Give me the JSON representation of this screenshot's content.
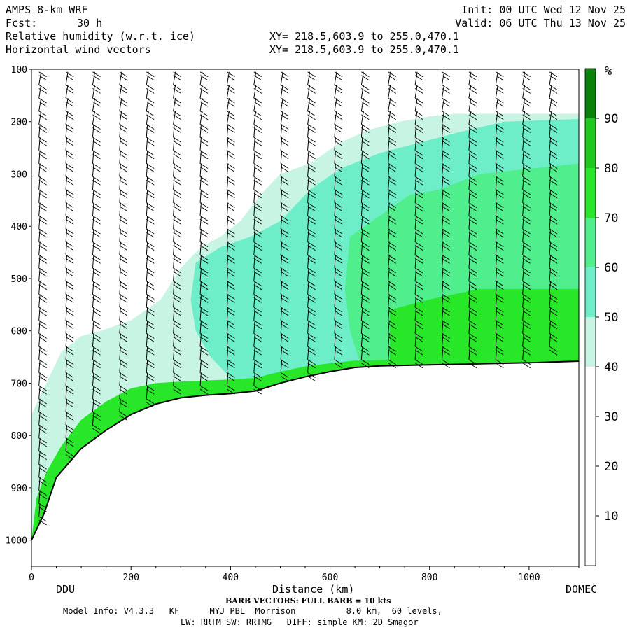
{
  "header": {
    "model": "AMPS 8-km WRF",
    "fcst_label": "Fcst:",
    "fcst_value": "30 h",
    "field1": "Relative humidity (w.r.t. ice)",
    "field2": "Horizontal wind vectors",
    "xy1": "XY= 218.5,603.9 to 255.0,470.1",
    "xy2": "XY= 218.5,603.9 to 255.0,470.1",
    "init": "Init: 00 UTC Wed 12 Nov 25",
    "valid": "Valid: 06 UTC Thu 13 Nov 25"
  },
  "chart_data": {
    "type": "heatmap",
    "title": "Relative humidity (w.r.t. ice)",
    "xlabel": "Distance (km)",
    "ylabel": "",
    "xlim": [
      0,
      1100
    ],
    "ylim": [
      1050,
      100
    ],
    "x_ticks": [
      0,
      200,
      400,
      600,
      800,
      1000
    ],
    "y_ticks": [
      100,
      200,
      300,
      400,
      500,
      600,
      700,
      800,
      900,
      1000
    ],
    "x_end_labels": {
      "left": "DDU",
      "right": "DOMEC"
    },
    "colorbar": {
      "unit": "%",
      "ticks": [
        10,
        20,
        30,
        40,
        50,
        60,
        70,
        80,
        90
      ],
      "colors": [
        "#ffffff",
        "#ffffff",
        "#ffffff",
        "#c8f5e3",
        "#6eeec8",
        "#50ee8c",
        "#28e628",
        "#1ec81e",
        "#0a820a"
      ]
    },
    "terrain_pressure": [
      [
        0,
        1000
      ],
      [
        25,
        950
      ],
      [
        50,
        880
      ],
      [
        100,
        825
      ],
      [
        150,
        790
      ],
      [
        200,
        760
      ],
      [
        250,
        740
      ],
      [
        300,
        728
      ],
      [
        350,
        723
      ],
      [
        400,
        720
      ],
      [
        450,
        715
      ],
      [
        500,
        700
      ],
      [
        550,
        688
      ],
      [
        600,
        678
      ],
      [
        650,
        670
      ],
      [
        700,
        667
      ],
      [
        800,
        665
      ],
      [
        900,
        663
      ],
      [
        1000,
        661
      ],
      [
        1100,
        658
      ]
    ],
    "rh_regions": [
      {
        "level": 40,
        "points": [
          [
            0,
            760
          ],
          [
            30,
            700
          ],
          [
            60,
            640
          ],
          [
            100,
            610
          ],
          [
            140,
            600
          ],
          [
            200,
            580
          ],
          [
            260,
            540
          ],
          [
            300,
            480
          ],
          [
            340,
            440
          ],
          [
            380,
            420
          ],
          [
            420,
            390
          ],
          [
            460,
            340
          ],
          [
            500,
            300
          ],
          [
            560,
            280
          ],
          [
            620,
            240
          ],
          [
            680,
            215
          ],
          [
            740,
            200
          ],
          [
            800,
            190
          ],
          [
            850,
            185
          ],
          [
            1100,
            185
          ],
          [
            1100,
            658
          ],
          [
            1000,
            661
          ],
          [
            800,
            665
          ],
          [
            700,
            667
          ],
          [
            600,
            678
          ],
          [
            500,
            700
          ],
          [
            400,
            720
          ],
          [
            300,
            728
          ],
          [
            200,
            760
          ],
          [
            100,
            825
          ],
          [
            50,
            880
          ],
          [
            25,
            950
          ],
          [
            0,
            1000
          ]
        ]
      },
      {
        "level": 50,
        "points": [
          [
            330,
            470
          ],
          [
            380,
            440
          ],
          [
            440,
            420
          ],
          [
            500,
            390
          ],
          [
            560,
            330
          ],
          [
            620,
            290
          ],
          [
            700,
            260
          ],
          [
            780,
            240
          ],
          [
            860,
            220
          ],
          [
            950,
            200
          ],
          [
            1100,
            195
          ],
          [
            1100,
            658
          ],
          [
            1000,
            661
          ],
          [
            800,
            665
          ],
          [
            700,
            667
          ],
          [
            600,
            678
          ],
          [
            500,
            700
          ],
          [
            440,
            700
          ],
          [
            400,
            690
          ],
          [
            360,
            650
          ],
          [
            330,
            600
          ],
          [
            320,
            540
          ]
        ]
      },
      {
        "level": 60,
        "points": [
          [
            640,
            420
          ],
          [
            700,
            380
          ],
          [
            760,
            340
          ],
          [
            820,
            330
          ],
          [
            900,
            300
          ],
          [
            1000,
            290
          ],
          [
            1100,
            280
          ],
          [
            1100,
            658
          ],
          [
            1000,
            661
          ],
          [
            800,
            665
          ],
          [
            700,
            667
          ],
          [
            660,
            660
          ],
          [
            640,
            600
          ],
          [
            630,
            520
          ]
        ]
      },
      {
        "level": 70,
        "points": [
          [
            0,
            1000
          ],
          [
            25,
            950
          ],
          [
            50,
            880
          ],
          [
            100,
            825
          ],
          [
            150,
            790
          ],
          [
            200,
            760
          ],
          [
            250,
            740
          ],
          [
            300,
            728
          ],
          [
            350,
            723
          ],
          [
            400,
            720
          ],
          [
            450,
            715
          ],
          [
            500,
            700
          ],
          [
            550,
            688
          ],
          [
            600,
            678
          ],
          [
            650,
            670
          ],
          [
            700,
            667
          ],
          [
            800,
            665
          ],
          [
            900,
            663
          ],
          [
            1000,
            661
          ],
          [
            1100,
            658
          ],
          [
            1100,
            650
          ],
          [
            1000,
            650
          ],
          [
            900,
            652
          ],
          [
            800,
            654
          ],
          [
            700,
            656
          ],
          [
            650,
            657
          ],
          [
            600,
            662
          ],
          [
            550,
            668
          ],
          [
            500,
            678
          ],
          [
            450,
            690
          ],
          [
            400,
            693
          ],
          [
            350,
            695
          ],
          [
            300,
            697
          ],
          [
            250,
            700
          ],
          [
            200,
            710
          ],
          [
            150,
            735
          ],
          [
            100,
            770
          ],
          [
            60,
            820
          ],
          [
            30,
            870
          ],
          [
            10,
            920
          ]
        ]
      },
      {
        "level": 70,
        "points": [
          [
            720,
            560
          ],
          [
            800,
            540
          ],
          [
            900,
            520
          ],
          [
            1000,
            520
          ],
          [
            1100,
            520
          ],
          [
            1100,
            650
          ],
          [
            1000,
            650
          ],
          [
            800,
            654
          ],
          [
            720,
            656
          ]
        ]
      }
    ],
    "wind_note": "BARB VECTORS: FULL BARB = 10 kts"
  },
  "footer": {
    "barb_note": "BARB VECTORS: FULL BARB = 10 kts",
    "model_info": "Model Info: V4.3.3   KF      MYJ PBL  Morrison          8.0 km,  60 levels,",
    "model_info2": "LW: RRTM SW: RRTMG   DIFF: simple KM: 2D Smagor"
  }
}
